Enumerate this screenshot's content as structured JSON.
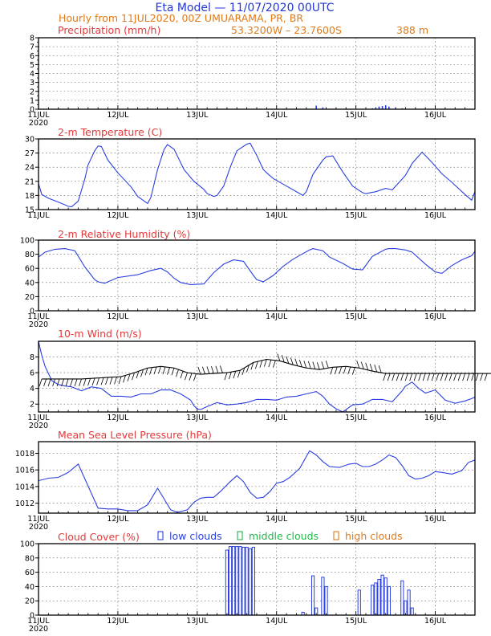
{
  "header": {
    "title": "Eta Model — 11/07/2020 00UTC",
    "line2": "Hourly from 11JUL2020, 00Z  UMUARAMA, PR, BR",
    "coords": "53.3200W – 23.7600S",
    "elevation": "388   m"
  },
  "x_axis": {
    "tick_labels": [
      "11JUL",
      "12JUL",
      "13JUL",
      "14JUL",
      "15JUL",
      "16JUL"
    ],
    "year_label": "2020",
    "range_hours": [
      0,
      132
    ]
  },
  "colors": {
    "title_blue": "#2436d8",
    "subtitle_orange": "#e07a1a",
    "panel_title_red": "#e23a3a",
    "series_blue": "#2a3fe0",
    "mid_green": "#1fb84a",
    "high_orange": "#e07a1a",
    "vector_black": "#000000"
  },
  "chart_data": [
    {
      "id": "precip",
      "type": "bar",
      "title": "Precipitation (mm/h)",
      "ylim": [
        0,
        8
      ],
      "yticks": [
        0,
        1,
        2,
        3,
        4,
        5,
        6,
        7,
        8
      ],
      "x_hours": [
        84,
        86,
        101,
        102,
        103,
        104,
        105,
        106,
        108,
        110
      ],
      "values": [
        0.4,
        0.2,
        0.1,
        0.15,
        0.3,
        0.35,
        0.45,
        0.3,
        0.15,
        0.1
      ]
    },
    {
      "id": "temp",
      "type": "line",
      "title": "2-m Temperature (C)",
      "ylim": [
        15,
        30
      ],
      "yticks": [
        15,
        18,
        21,
        24,
        27,
        30
      ],
      "x": [
        0,
        1,
        3,
        6,
        9,
        10,
        12,
        14,
        15,
        17,
        18,
        19,
        21,
        24,
        28,
        30,
        33,
        34,
        36,
        38,
        39,
        41,
        44,
        47,
        50,
        51,
        53,
        54,
        56,
        58,
        60,
        63,
        64,
        66,
        68,
        69,
        71,
        75,
        80,
        81,
        83,
        86,
        87,
        89,
        92,
        95,
        98,
        99,
        102,
        105,
        107,
        110,
        111,
        113,
        116,
        119,
        122,
        125,
        129,
        131,
        132
      ],
      "values": [
        20.5,
        18.2,
        17.4,
        16.6,
        15.7,
        15.6,
        16.8,
        21.5,
        24.5,
        27.5,
        28.5,
        28.4,
        25.5,
        22.8,
        19.8,
        17.8,
        16.3,
        17.6,
        23.5,
        27.8,
        28.8,
        27.8,
        23.5,
        21.0,
        19.3,
        18.4,
        17.8,
        18.0,
        20.0,
        24.0,
        27.5,
        28.9,
        29.1,
        26.5,
        23.5,
        22.8,
        21.6,
        20.0,
        18.0,
        18.8,
        22.5,
        25.5,
        26.2,
        26.4,
        23.0,
        20.0,
        18.6,
        18.4,
        18.8,
        19.5,
        19.2,
        21.5,
        22.3,
        24.8,
        27.2,
        25.0,
        22.6,
        20.8,
        18.2,
        17.0,
        18.8
      ]
    },
    {
      "id": "rh",
      "type": "line",
      "title": "2-m Relative Humidity (%)",
      "ylim": [
        0,
        100
      ],
      "yticks": [
        0,
        20,
        40,
        60,
        80,
        100
      ],
      "x": [
        0,
        2,
        5,
        8,
        11,
        14,
        17,
        18,
        20,
        24,
        30,
        34,
        37,
        39,
        41,
        43,
        46,
        50,
        53,
        56,
        59,
        62,
        65,
        66,
        68,
        71,
        74,
        77,
        80,
        82,
        83,
        86,
        88,
        92,
        95,
        98,
        101,
        105,
        106,
        108,
        111,
        113,
        117,
        120,
        122,
        125,
        128,
        131,
        132
      ],
      "values": [
        76,
        83,
        87,
        88,
        85,
        62,
        44,
        41,
        39,
        47,
        51,
        57,
        60,
        55,
        46,
        40,
        37,
        38,
        54,
        66,
        72,
        70,
        50,
        44,
        41,
        50,
        63,
        73,
        81,
        86,
        88,
        85,
        76,
        67,
        59,
        58,
        77,
        87,
        88,
        88,
        86,
        83,
        66,
        55,
        53,
        64,
        72,
        78,
        84
      ]
    },
    {
      "id": "wind",
      "type": "line",
      "title": "10-m Wind (m/s)",
      "ylim": [
        1,
        10
      ],
      "yticks": [
        2,
        4,
        6,
        8
      ],
      "x": [
        0,
        1,
        2,
        4,
        6,
        8,
        10,
        13,
        16,
        19,
        22,
        25,
        28,
        31,
        34,
        37,
        40,
        43,
        46,
        47,
        48,
        49,
        51,
        54,
        57,
        60,
        63,
        66,
        69,
        72,
        75,
        78,
        81,
        84,
        86,
        88,
        90,
        92,
        95,
        98,
        101,
        104,
        107,
        110,
        111,
        113,
        115,
        117,
        120,
        123,
        126,
        129,
        131,
        132
      ],
      "values": [
        10.0,
        8.2,
        6.8,
        5.0,
        4.5,
        4.3,
        4.2,
        3.7,
        4.2,
        4.0,
        3.0,
        3.0,
        2.9,
        3.3,
        3.3,
        3.8,
        3.8,
        3.3,
        2.5,
        1.8,
        1.4,
        1.3,
        1.7,
        2.2,
        1.9,
        2.0,
        2.2,
        2.6,
        2.6,
        2.5,
        2.9,
        3.0,
        3.3,
        3.6,
        3.0,
        2.0,
        1.4,
        1.0,
        1.9,
        2.0,
        2.6,
        2.6,
        2.3,
        3.7,
        4.3,
        4.8,
        4.0,
        3.4,
        3.8,
        2.5,
        2.1,
        2.4,
        2.7,
        2.9
      ],
      "vector_row_level": [
        5.2,
        5.2,
        5.2,
        5.2,
        5.3,
        5.4,
        5.5,
        6.0,
        6.6,
        6.8,
        6.6,
        6.0,
        5.8,
        5.9,
        6.0,
        6.3,
        7.3,
        7.7,
        7.5,
        7.0,
        6.6,
        6.4,
        6.7,
        6.8,
        6.6,
        6.2,
        5.9,
        5.9,
        5.9,
        5.9,
        5.9,
        5.9,
        5.9,
        5.9
      ]
    },
    {
      "id": "mslp",
      "type": "line",
      "title": "Mean Sea Level Pressure (hPa)",
      "ylim": [
        1010.8,
        1019.4
      ],
      "yticks": [
        1012,
        1014,
        1016,
        1018
      ],
      "x": [
        0,
        3,
        6,
        9,
        12,
        18,
        21,
        24,
        27,
        30,
        33,
        36,
        38,
        40,
        42,
        45,
        47,
        49,
        51,
        53,
        55,
        58,
        60,
        62,
        64,
        66,
        68,
        70,
        72,
        74,
        76,
        79,
        82,
        84,
        86,
        88,
        91,
        94,
        96,
        98,
        100,
        102,
        104,
        106,
        108,
        110,
        112,
        114,
        116,
        118,
        120,
        122,
        125,
        128,
        130,
        132
      ],
      "values": [
        1014.7,
        1015.0,
        1015.1,
        1015.7,
        1016.7,
        1011.4,
        1011.3,
        1011.3,
        1011.1,
        1011.1,
        1011.8,
        1013.8,
        1012.5,
        1011.2,
        1010.9,
        1011.2,
        1012.1,
        1012.6,
        1012.7,
        1012.7,
        1013.4,
        1014.6,
        1015.3,
        1014.6,
        1013.3,
        1012.6,
        1012.7,
        1013.4,
        1014.4,
        1014.6,
        1015.1,
        1016.2,
        1018.3,
        1017.8,
        1017.0,
        1016.4,
        1016.3,
        1016.7,
        1016.8,
        1016.4,
        1016.4,
        1016.7,
        1017.2,
        1017.8,
        1017.5,
        1016.5,
        1015.3,
        1014.9,
        1015.0,
        1015.3,
        1015.8,
        1015.7,
        1015.5,
        1015.9,
        1016.9,
        1017.2
      ]
    },
    {
      "id": "cloud",
      "type": "bar",
      "title": "Cloud Cover (%)",
      "legend": [
        "low clouds",
        "middle clouds",
        "high clouds"
      ],
      "ylim": [
        0,
        100
      ],
      "yticks": [
        0,
        20,
        40,
        60,
        80,
        100
      ],
      "x_hours": [
        57,
        58,
        59,
        60,
        61,
        62,
        63,
        64,
        65,
        80,
        83,
        84,
        86,
        87,
        97,
        101,
        102,
        103,
        104,
        105,
        106,
        110,
        111,
        112,
        113
      ],
      "values": [
        91,
        96,
        96,
        96,
        96,
        95,
        95,
        93,
        95,
        4,
        55,
        10,
        53,
        40,
        35,
        42,
        45,
        50,
        56,
        52,
        40,
        48,
        20,
        35,
        10
      ]
    }
  ]
}
